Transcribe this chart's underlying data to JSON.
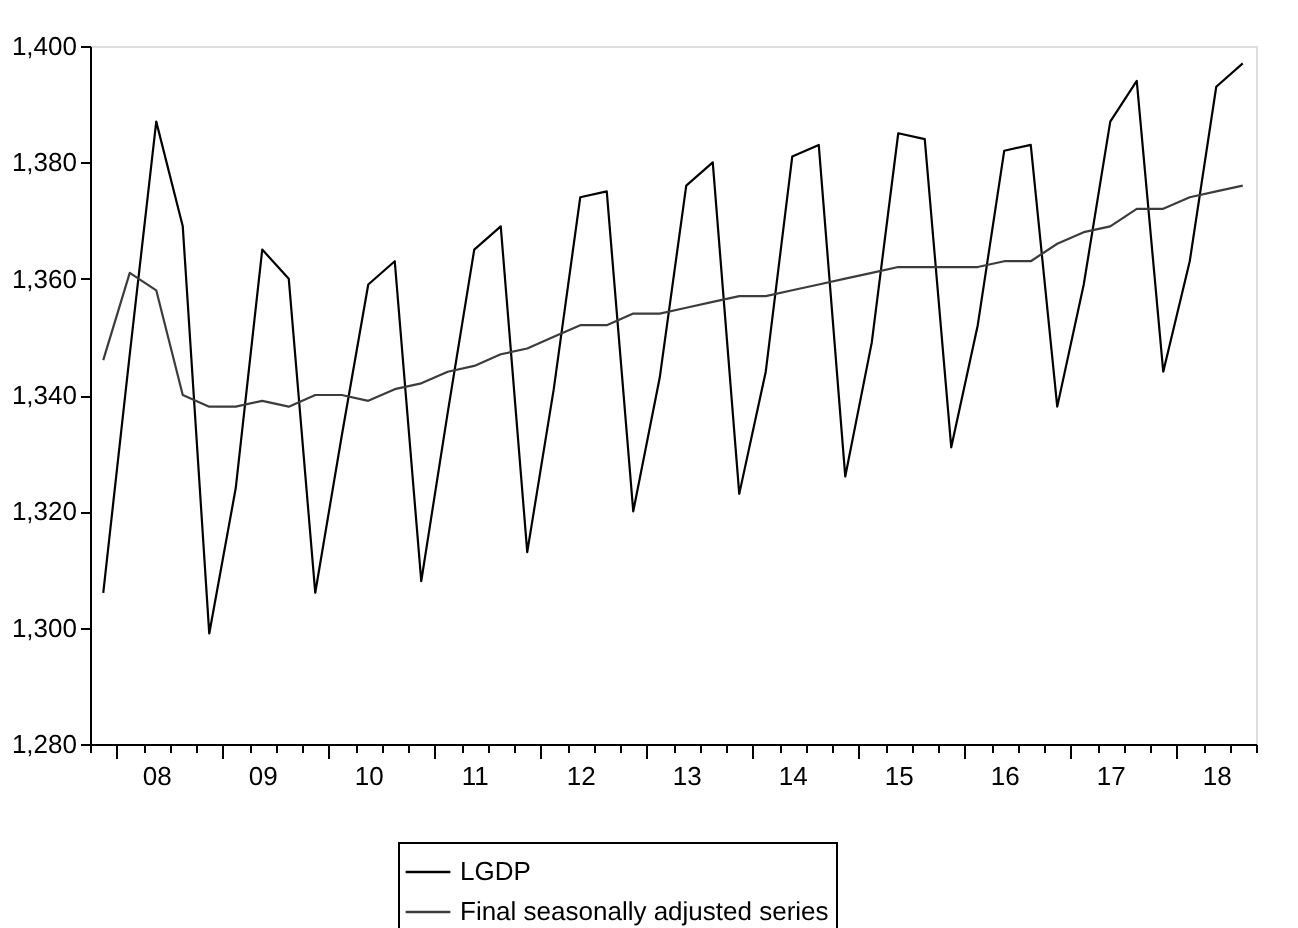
{
  "chart_data": {
    "type": "line",
    "legend": "bottom",
    "grid": false,
    "marker": "none",
    "line_style": "solid",
    "categories": [
      null,
      null,
      "08",
      null,
      null,
      null,
      "09",
      null,
      null,
      null,
      "10",
      null,
      null,
      null,
      "11",
      null,
      null,
      null,
      "12",
      null,
      null,
      null,
      "13",
      null,
      null,
      null,
      "14",
      null,
      null,
      null,
      "15",
      null,
      null,
      null,
      "16",
      null,
      null,
      null,
      "17",
      null,
      null,
      null,
      "18",
      null
    ],
    "series": [
      {
        "name": "LGDP",
        "color": "#000000",
        "values": [
          1306,
          1347,
          1387,
          1369,
          1299,
          1324,
          1365,
          1360,
          1306,
          1333,
          1359,
          1363,
          1308,
          1337,
          1365,
          1369,
          1313,
          1341,
          1374,
          1375,
          1320,
          1343,
          1376,
          1380,
          1323,
          1344,
          1381,
          1383,
          1326,
          1349,
          1385,
          1384,
          1331,
          1352,
          1382,
          1383,
          1338,
          1359,
          1387,
          1394,
          1344,
          1363,
          1393,
          1397
        ]
      },
      {
        "name": "Final seasonally adjusted series",
        "color": "#3c3c3c",
        "values": [
          1346,
          1361,
          1358,
          1340,
          1338,
          1338,
          1339,
          1338,
          1340,
          1340,
          1339,
          1341,
          1342,
          1344,
          1345,
          1347,
          1348,
          1350,
          1352,
          1352,
          1354,
          1354,
          1355,
          1356,
          1357,
          1357,
          1358,
          1359,
          1360,
          1361,
          1362,
          1362,
          1362,
          1362,
          1363,
          1363,
          1366,
          1368,
          1369,
          1372,
          1372,
          1374,
          1375,
          1376
        ]
      }
    ],
    "ylim": [
      1280,
      1400
    ],
    "yticks": [
      {
        "value": 1280,
        "label": "1,280"
      },
      {
        "value": 1300,
        "label": "1,300"
      },
      {
        "value": 1320,
        "label": "1,320"
      },
      {
        "value": 1340,
        "label": "1,340"
      },
      {
        "value": 1360,
        "label": "1,360"
      },
      {
        "value": 1380,
        "label": "1,380"
      },
      {
        "value": 1400,
        "label": "1,400"
      }
    ]
  }
}
